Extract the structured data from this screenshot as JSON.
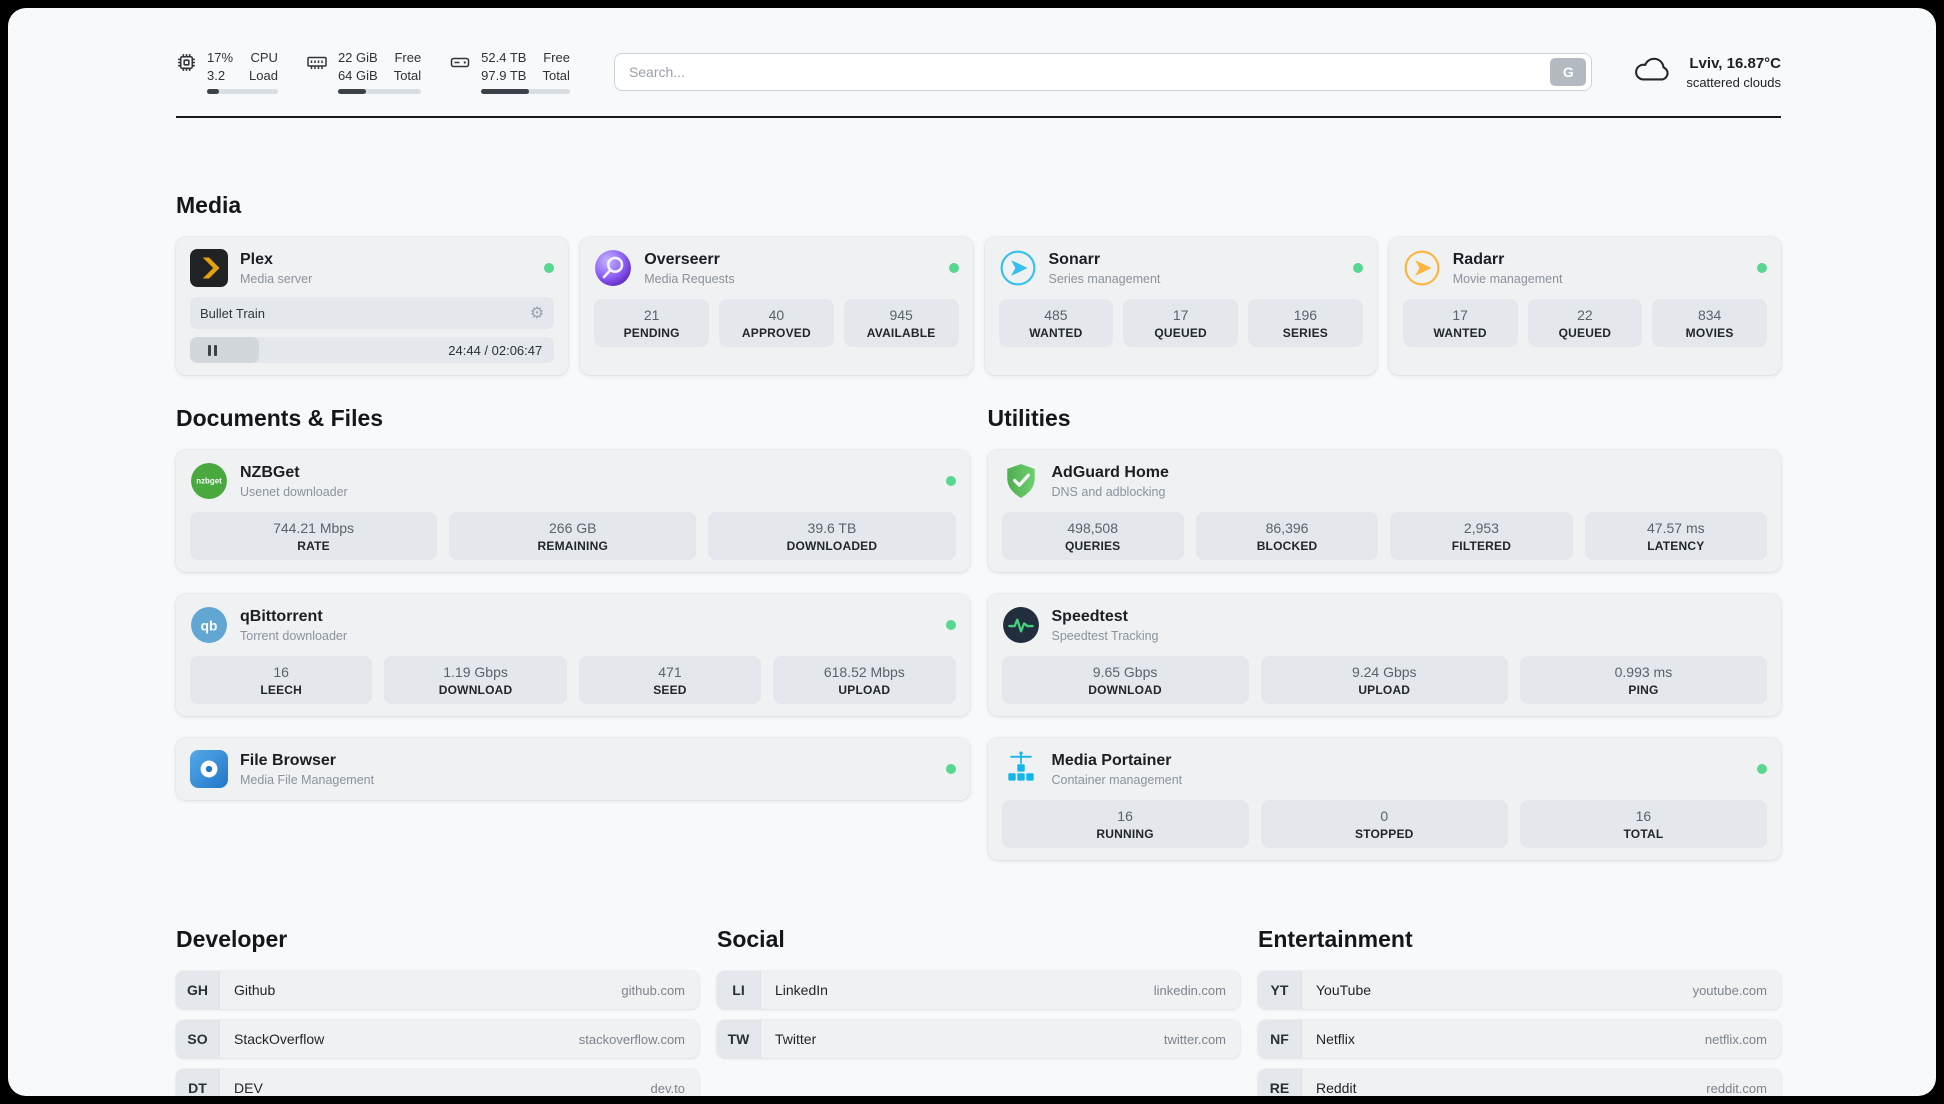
{
  "topbar": {
    "cpu": {
      "value_top": "17%",
      "value_bottom": "3.2",
      "label_top": "CPU",
      "label_bottom": "Load",
      "percent": 17
    },
    "ram": {
      "value_top": "22 GiB",
      "value_bottom": "64 GiB",
      "label_top": "Free",
      "label_bottom": "Total",
      "percent": 34
    },
    "disk": {
      "value_top": "52.4 TB",
      "value_bottom": "97.9 TB",
      "label_top": "Free",
      "label_bottom": "Total",
      "percent": 54
    },
    "search": {
      "placeholder": "Search...",
      "engine_label": "G"
    },
    "weather": {
      "location": "Lviv, 16.87°C",
      "condition": "scattered clouds"
    }
  },
  "sections": {
    "media": {
      "title": "Media",
      "plex": {
        "name": "Plex",
        "subtitle": "Media server",
        "now_playing": "Bullet Train",
        "time": "24:44 / 02:06:47",
        "progress_percent": 19
      },
      "overseerr": {
        "name": "Overseerr",
        "subtitle": "Media Requests",
        "stats": [
          {
            "value": "21",
            "label": "PENDING"
          },
          {
            "value": "40",
            "label": "APPROVED"
          },
          {
            "value": "945",
            "label": "AVAILABLE"
          }
        ]
      },
      "sonarr": {
        "name": "Sonarr",
        "subtitle": "Series management",
        "stats": [
          {
            "value": "485",
            "label": "WANTED"
          },
          {
            "value": "17",
            "label": "QUEUED"
          },
          {
            "value": "196",
            "label": "SERIES"
          }
        ]
      },
      "radarr": {
        "name": "Radarr",
        "subtitle": "Movie management",
        "stats": [
          {
            "value": "17",
            "label": "WANTED"
          },
          {
            "value": "22",
            "label": "QUEUED"
          },
          {
            "value": "834",
            "label": "MOVIES"
          }
        ]
      }
    },
    "documents": {
      "title": "Documents & Files",
      "nzbget": {
        "name": "NZBGet",
        "subtitle": "Usenet downloader",
        "stats": [
          {
            "value": "744.21 Mbps",
            "label": "RATE"
          },
          {
            "value": "266 GB",
            "label": "REMAINING"
          },
          {
            "value": "39.6 TB",
            "label": "DOWNLOADED"
          }
        ]
      },
      "qbittorrent": {
        "name": "qBittorrent",
        "subtitle": "Torrent downloader",
        "stats": [
          {
            "value": "16",
            "label": "LEECH"
          },
          {
            "value": "1.19 Gbps",
            "label": "DOWNLOAD"
          },
          {
            "value": "471",
            "label": "SEED"
          },
          {
            "value": "618.52 Mbps",
            "label": "UPLOAD"
          }
        ]
      },
      "filebrowser": {
        "name": "File Browser",
        "subtitle": "Media File Management"
      }
    },
    "utilities": {
      "title": "Utilities",
      "adguard": {
        "name": "AdGuard Home",
        "subtitle": "DNS and adblocking",
        "stats": [
          {
            "value": "498,508",
            "label": "QUERIES"
          },
          {
            "value": "86,396",
            "label": "BLOCKED"
          },
          {
            "value": "2,953",
            "label": "FILTERED"
          },
          {
            "value": "47.57 ms",
            "label": "LATENCY"
          }
        ]
      },
      "speedtest": {
        "name": "Speedtest",
        "subtitle": "Speedtest Tracking",
        "stats": [
          {
            "value": "9.65 Gbps",
            "label": "DOWNLOAD"
          },
          {
            "value": "9.24 Gbps",
            "label": "UPLOAD"
          },
          {
            "value": "0.993 ms",
            "label": "PING"
          }
        ]
      },
      "portainer": {
        "name": "Media Portainer",
        "subtitle": "Container management",
        "stats": [
          {
            "value": "16",
            "label": "RUNNING"
          },
          {
            "value": "0",
            "label": "STOPPED"
          },
          {
            "value": "16",
            "label": "TOTAL"
          }
        ]
      }
    },
    "developer": {
      "title": "Developer",
      "links": [
        {
          "abbr": "GH",
          "name": "Github",
          "url": "github.com"
        },
        {
          "abbr": "SO",
          "name": "StackOverflow",
          "url": "stackoverflow.com"
        },
        {
          "abbr": "DT",
          "name": "DEV",
          "url": "dev.to"
        }
      ]
    },
    "social": {
      "title": "Social",
      "links": [
        {
          "abbr": "LI",
          "name": "LinkedIn",
          "url": "linkedin.com"
        },
        {
          "abbr": "TW",
          "name": "Twitter",
          "url": "twitter.com"
        }
      ]
    },
    "entertainment": {
      "title": "Entertainment",
      "links": [
        {
          "abbr": "YT",
          "name": "YouTube",
          "url": "youtube.com"
        },
        {
          "abbr": "NF",
          "name": "Netflix",
          "url": "netflix.com"
        },
        {
          "abbr": "RE",
          "name": "Reddit",
          "url": "reddit.com"
        }
      ]
    }
  },
  "colors": {
    "status_green": "#57d78f",
    "plex_yellow": "#e5a00d",
    "overseerr_purple": "#8b5cf6",
    "sonarr_blue": "#33c0ee",
    "radarr_gold": "#ffb53c",
    "nzbget_green": "#49a83e",
    "qbittorrent_blue": "#62a7d4",
    "filebrowser_blue": "#2f8fe0",
    "adguard_green": "#5fba5f",
    "speedtest_bg": "#222e3e",
    "speedtest_pulse": "#43d17a",
    "portainer_blue": "#13b5ea"
  }
}
